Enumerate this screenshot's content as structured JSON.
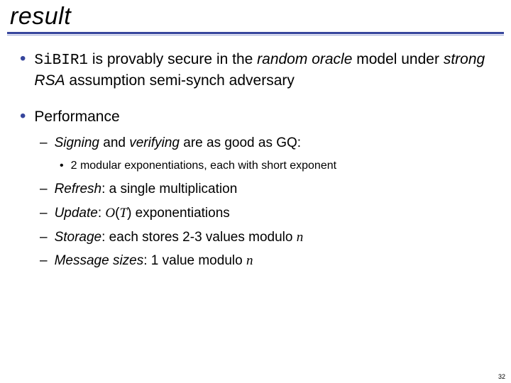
{
  "title": "result",
  "colors": {
    "accent": "#36459c",
    "rule_light": "#9aa3d6",
    "text": "#000000",
    "bg": "#ffffff"
  },
  "fonts": {
    "title_size": 34,
    "b1_size": 21,
    "b2_size": 19,
    "b3_size": 16
  },
  "bullets_level1": {
    "item0": {
      "mono": "SiBIR1",
      "pre": " is provably secure in the ",
      "em1": "random oracle",
      "mid": " model under ",
      "em2": "strong RSA",
      "post": " assumption semi-synch adversary"
    },
    "item1": {
      "text": "Performance"
    }
  },
  "bullets_level2": {
    "i0": {
      "em": "Signing",
      "mid": " and ",
      "em2": "verifying",
      "post": " are as good as GQ:"
    },
    "i1": {
      "em": "Refresh",
      "post": ": a single multiplication"
    },
    "i2": {
      "em": "Update",
      "post1": ": ",
      "math": "O",
      "post2": "(",
      "mathvar": "T",
      "post3": ") exponentiations"
    },
    "i3": {
      "em": "Storage",
      "post1": ": each stores 2-3 values modulo ",
      "mathvar": "n"
    },
    "i4": {
      "em": "Message sizes",
      "post1": ": 1 value modulo ",
      "mathvar": "n"
    }
  },
  "bullets_level3": {
    "i0": {
      "text": "2 modular exponentiations, each with short exponent"
    }
  },
  "page_number": "32"
}
